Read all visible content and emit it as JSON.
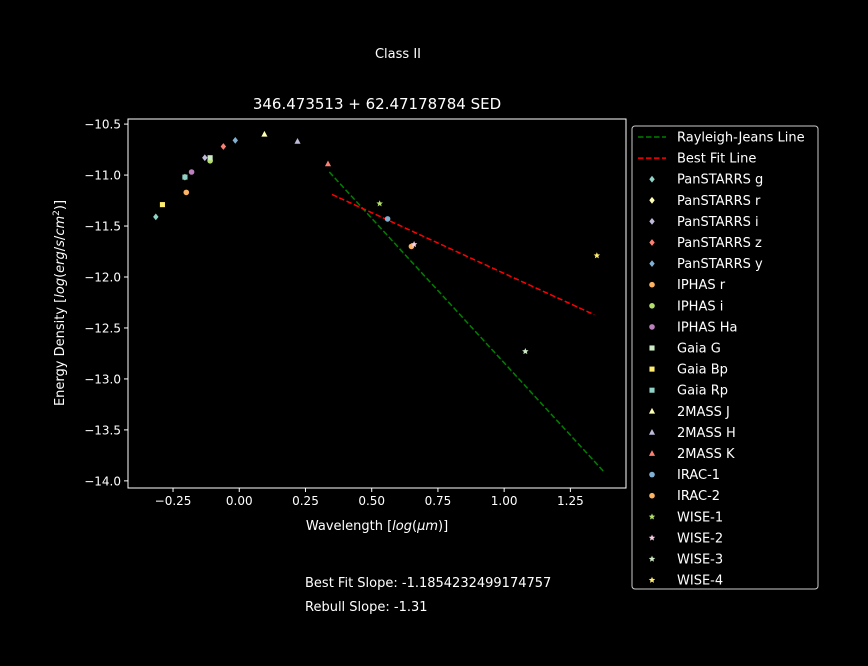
{
  "suptitle": "Class II",
  "notes": {
    "best_fit": "Best Fit Slope: -1.1854232499174757",
    "rebull": "Rebull Slope: -1.31"
  },
  "chart_data": {
    "type": "scatter",
    "title": "346.473513 + 62.47178784 SED",
    "xlabel": "Wavelength [log(μm)]",
    "ylabel": "Energy Density [log(erg/s/cm²)]",
    "xlim": [
      -0.42,
      1.46
    ],
    "ylim": [
      -14.07,
      -10.45
    ],
    "xticks": [
      "-0.25",
      "0.00",
      "0.25",
      "0.50",
      "0.75",
      "1.00",
      "1.25"
    ],
    "yticks": [
      "-10.5",
      "-11.0",
      "-11.5",
      "-12.0",
      "-12.5",
      "-13.0",
      "-13.5",
      "-14.0"
    ],
    "grid": false,
    "legend_position": "right, outside plot",
    "lines": [
      {
        "name": "Rayleigh-Jeans Line",
        "color": "#008000",
        "dash": "dashed",
        "x": [
          0.34,
          1.38
        ],
        "y": [
          -10.97,
          -13.92
        ]
      },
      {
        "name": "Best Fit Line",
        "color": "#ff0000",
        "dash": "dashed",
        "x": [
          0.35,
          1.34
        ],
        "y": [
          -11.19,
          -12.37
        ]
      }
    ],
    "series": [
      {
        "name": "PanSTARRS g",
        "marker": "diamond",
        "color": "#8dd3c7",
        "x": [
          -0.315
        ],
        "y": [
          -11.41
        ]
      },
      {
        "name": "PanSTARRS r",
        "marker": "diamond",
        "color": "#ffffb3",
        "x": [
          -0.205
        ],
        "y": [
          -11.02
        ]
      },
      {
        "name": "PanSTARRS i",
        "marker": "diamond",
        "color": "#bebada",
        "x": [
          -0.13
        ],
        "y": [
          -10.83
        ]
      },
      {
        "name": "PanSTARRS z",
        "marker": "diamond",
        "color": "#fb8072",
        "x": [
          -0.06
        ],
        "y": [
          -10.72
        ]
      },
      {
        "name": "PanSTARRS y",
        "marker": "diamond",
        "color": "#80b1d3",
        "x": [
          -0.015
        ],
        "y": [
          -10.66
        ]
      },
      {
        "name": "IPHAS r",
        "marker": "circle",
        "color": "#fdb462",
        "x": [
          -0.2
        ],
        "y": [
          -11.17
        ]
      },
      {
        "name": "IPHAS i",
        "marker": "circle",
        "color": "#b3de69",
        "x": [
          -0.11
        ],
        "y": [
          -10.86
        ]
      },
      {
        "name": "IPHAS Ha",
        "marker": "circle",
        "color": "#bc80bd",
        "x": [
          -0.18
        ],
        "y": [
          -10.97
        ]
      },
      {
        "name": "Gaia G",
        "marker": "square",
        "color": "#ccebc5",
        "x": [
          -0.11
        ],
        "y": [
          -10.83
        ]
      },
      {
        "name": "Gaia Bp",
        "marker": "square",
        "color": "#ffed6f",
        "x": [
          -0.29
        ],
        "y": [
          -11.29
        ]
      },
      {
        "name": "Gaia Rp",
        "marker": "square",
        "color": "#8dd3c7",
        "x": [
          -0.205
        ],
        "y": [
          -11.02
        ]
      },
      {
        "name": "2MASS J",
        "marker": "triangle",
        "color": "#ffffb3",
        "x": [
          0.095
        ],
        "y": [
          -10.6
        ]
      },
      {
        "name": "2MASS H",
        "marker": "triangle",
        "color": "#bebada",
        "x": [
          0.22
        ],
        "y": [
          -10.67
        ]
      },
      {
        "name": "2MASS K",
        "marker": "triangle",
        "color": "#fb8072",
        "x": [
          0.335
        ],
        "y": [
          -10.89
        ]
      },
      {
        "name": "IRAC-1",
        "marker": "circle",
        "color": "#80b1d3",
        "x": [
          0.56
        ],
        "y": [
          -11.43
        ]
      },
      {
        "name": "IRAC-2",
        "marker": "circle",
        "color": "#fdb462",
        "x": [
          0.65
        ],
        "y": [
          -11.7
        ]
      },
      {
        "name": "WISE-1",
        "marker": "star",
        "color": "#b3de69",
        "x": [
          0.53
        ],
        "y": [
          -11.28
        ]
      },
      {
        "name": "WISE-2",
        "marker": "star",
        "color": "#fccde5",
        "x": [
          0.66
        ],
        "y": [
          -11.68
        ]
      },
      {
        "name": "WISE-3",
        "marker": "star",
        "color": "#ccebc5",
        "x": [
          1.08
        ],
        "y": [
          -12.73
        ]
      },
      {
        "name": "WISE-4",
        "marker": "star",
        "color": "#ffed6f",
        "x": [
          1.35
        ],
        "y": [
          -11.79
        ]
      }
    ]
  }
}
